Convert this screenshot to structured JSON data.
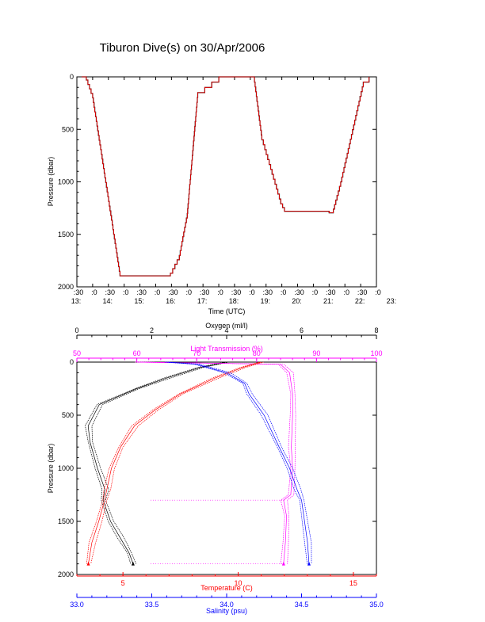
{
  "title": "Tiburon Dive(s) on 30/Apr/2006",
  "chart_data": [
    {
      "type": "line",
      "xlabel": "Time (UTC)",
      "ylabel": "Pressure (dbar)",
      "x_ticks_minutes": [
        ":30",
        ":0",
        ":30",
        ":0",
        ":30",
        ":0",
        ":30",
        ":0",
        ":30",
        ":0",
        ":30",
        ":0",
        ":30",
        ":0",
        ":30",
        ":0",
        ":30",
        ":0",
        ":30",
        ":0"
      ],
      "x_ticks_hours": [
        "13:",
        "14:",
        "15:",
        "16:",
        "17:",
        "18:",
        "19:",
        "20:",
        "21:",
        "22:",
        "23:"
      ],
      "xlim": [
        "13:30",
        "23:00"
      ],
      "ylim": [
        2000,
        0
      ],
      "y_ticks": [
        "0",
        "500",
        "1000",
        "1500",
        "2000"
      ],
      "series": [
        {
          "color": "#ff0000",
          "x": [
            "13:39",
            "13:48",
            "14:00",
            "14:40",
            "14:52",
            "16:20",
            "16:28",
            "16:45",
            "17:00",
            "17:20",
            "18:00",
            "19:00",
            "19:08",
            "19:22",
            "19:58",
            "20:05",
            "21:30",
            "21:38",
            "21:52",
            "22:35",
            "22:46"
          ],
          "y": [
            0,
            30,
            200,
            1500,
            1895,
            1895,
            1870,
            1700,
            1300,
            150,
            0,
            0,
            50,
            600,
            1210,
            1280,
            1295,
            1260,
            1000,
            50,
            0
          ]
        }
      ]
    },
    {
      "type": "scatter",
      "ylabel": "Pressure (dbar)",
      "ylim": [
        2000,
        0
      ],
      "y_ticks": [
        "0",
        "500",
        "1000",
        "1500",
        "2000"
      ],
      "axes": [
        {
          "label": "Oxygen (ml/l)",
          "color": "#000000",
          "position": "top",
          "range": [
            0,
            8
          ],
          "ticks": [
            "0",
            "2",
            "4",
            "6",
            "8"
          ]
        },
        {
          "label": "Light Transmission (%)",
          "color": "#ff00ff",
          "position": "top-inner",
          "range": [
            50,
            100
          ],
          "ticks": [
            "50",
            "60",
            "70",
            "80",
            "90",
            "100"
          ]
        },
        {
          "label": "Temperature (C)",
          "color": "#ff0000",
          "position": "bottom",
          "range": [
            3,
            16
          ],
          "ticks": [
            "5",
            "10",
            "15"
          ]
        },
        {
          "label": "Salinity (psu)",
          "color": "#0000ff",
          "position": "bottom-outer",
          "range": [
            33.0,
            35.0
          ],
          "ticks": [
            "33.0",
            "33.5",
            "34.0",
            "34.5",
            "35.0"
          ]
        }
      ],
      "series": [
        {
          "axis": 0,
          "color": "#000000",
          "y": [
            0,
            50,
            150,
            250,
            400,
            600,
            750,
            1000,
            1200,
            1300,
            1500,
            1650,
            1800,
            1900
          ],
          "x": [
            4.0,
            3.3,
            2.4,
            1.6,
            0.6,
            0.3,
            0.35,
            0.55,
            0.75,
            0.7,
            0.9,
            1.15,
            1.4,
            1.5
          ]
        },
        {
          "axis": 1,
          "color": "#ff00ff",
          "y": [
            0,
            20,
            100,
            300,
            500,
            800,
            1000,
            1250,
            1300,
            1450,
            1700,
            1900
          ],
          "x": [
            60,
            84,
            85.5,
            86,
            86,
            85.8,
            86,
            85.7,
            84.5,
            85,
            84.8,
            84.5
          ]
        },
        {
          "axis": 2,
          "color": "#ff0000",
          "y": [
            0,
            50,
            150,
            300,
            450,
            600,
            800,
            1000,
            1200,
            1300,
            1500,
            1700,
            1900
          ],
          "x": [
            11.0,
            10.2,
            9.0,
            7.5,
            6.4,
            5.5,
            4.9,
            4.5,
            4.3,
            4.2,
            3.95,
            3.65,
            3.5
          ]
        },
        {
          "axis": 3,
          "color": "#0000ff",
          "y": [
            0,
            20,
            100,
            200,
            300,
            500,
            800,
            1000,
            1200,
            1300,
            1500,
            1700,
            1900
          ],
          "x": [
            33.6,
            33.8,
            34.0,
            34.12,
            34.15,
            34.25,
            34.35,
            34.42,
            34.47,
            34.5,
            34.52,
            34.54,
            34.55
          ]
        }
      ]
    }
  ]
}
